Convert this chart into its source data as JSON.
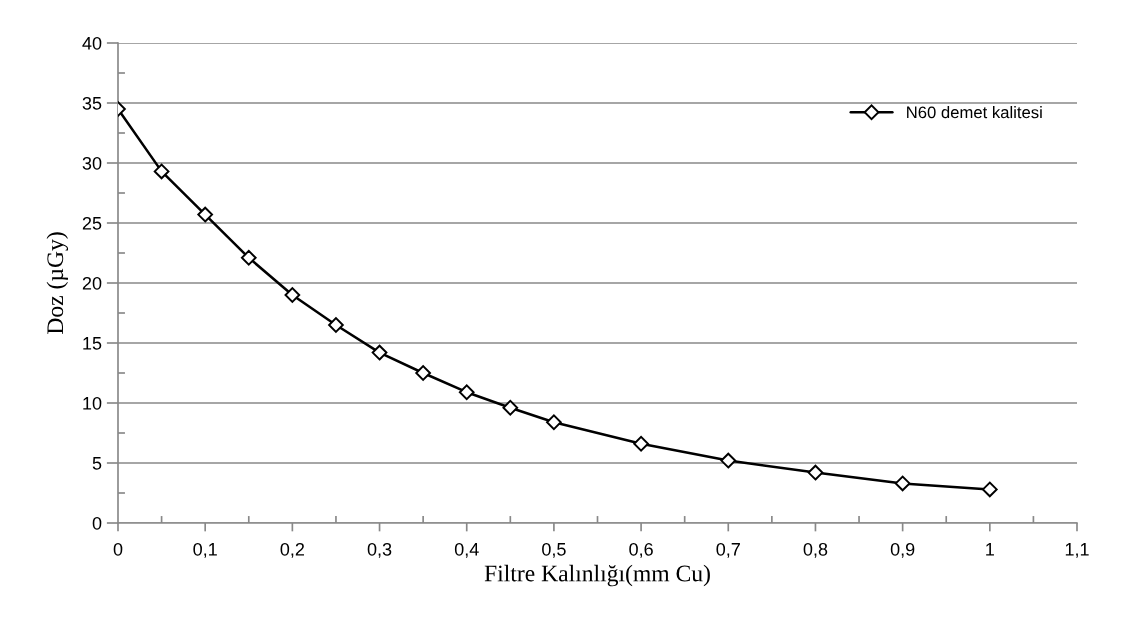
{
  "chart_data": {
    "type": "line",
    "xlabel": "Filtre Kalınlığı(mm Cu)",
    "ylabel": "Doz (µGy)",
    "x": [
      0,
      0.05,
      0.1,
      0.15,
      0.2,
      0.25,
      0.3,
      0.35,
      0.4,
      0.45,
      0.5,
      0.6,
      0.7,
      0.8,
      0.9,
      1
    ],
    "series": [
      {
        "name": "N60 demet kalitesi",
        "color": "#000000",
        "values": [
          34.5,
          29.3,
          25.7,
          22.1,
          19.0,
          16.5,
          14.2,
          12.5,
          10.9,
          9.6,
          8.4,
          6.6,
          5.2,
          4.2,
          3.3,
          2.8
        ]
      }
    ],
    "xlim": [
      0,
      1.1
    ],
    "xticks": [
      {
        "value": 0,
        "label": "0"
      },
      {
        "value": 0.05,
        "label": null
      },
      {
        "value": 0.1,
        "label": "0,1"
      },
      {
        "value": 0.15,
        "label": null
      },
      {
        "value": 0.2,
        "label": "0,2"
      },
      {
        "value": 0.25,
        "label": null
      },
      {
        "value": 0.3,
        "label": "0,3"
      },
      {
        "value": 0.35,
        "label": null
      },
      {
        "value": 0.4,
        "label": "0,4"
      },
      {
        "value": 0.45,
        "label": null
      },
      {
        "value": 0.5,
        "label": "0,5"
      },
      {
        "value": 0.55,
        "label": null
      },
      {
        "value": 0.6,
        "label": "0,6"
      },
      {
        "value": 0.65,
        "label": null
      },
      {
        "value": 0.7,
        "label": "0,7"
      },
      {
        "value": 0.75,
        "label": null
      },
      {
        "value": 0.8,
        "label": "0,8"
      },
      {
        "value": 0.85,
        "label": null
      },
      {
        "value": 0.9,
        "label": "0,9"
      },
      {
        "value": 0.95,
        "label": null
      },
      {
        "value": 1,
        "label": "1"
      },
      {
        "value": 1.05,
        "label": null
      },
      {
        "value": 1.1,
        "label": "1,1"
      }
    ],
    "ylim": [
      0,
      40
    ],
    "yticks": [
      0,
      {
        "value": 2.5,
        "label": null
      },
      5,
      {
        "value": 7.5,
        "label": null
      },
      10,
      {
        "value": 12.5,
        "label": null
      },
      15,
      {
        "value": 17.5,
        "label": null
      },
      20,
      {
        "value": 22.5,
        "label": null
      },
      25,
      {
        "value": 27.5,
        "label": null
      },
      30,
      {
        "value": 32.5,
        "label": null
      },
      35,
      {
        "value": 37.5,
        "label": null
      },
      40
    ],
    "grid": "y",
    "legend": "top right",
    "marker": "diamond",
    "line_style": "solid"
  }
}
